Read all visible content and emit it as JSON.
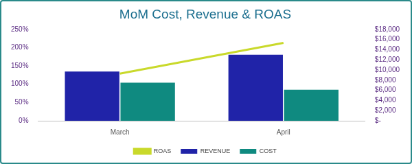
{
  "chart_data": {
    "type": "bar",
    "title": "MoM Cost, Revenue & ROAS",
    "categories": [
      "March",
      "April"
    ],
    "series": [
      {
        "name": "REVENUE",
        "color": "#2023a8",
        "values": [
          9700,
          13000
        ],
        "axis": "y2"
      },
      {
        "name": "COST",
        "color": "#0f8a80",
        "values": [
          7500,
          6100
        ],
        "axis": "y2"
      },
      {
        "name": "ROAS",
        "color": "#c9d92b",
        "values": [
          129,
          213
        ],
        "type": "line",
        "marker": "none"
      }
    ],
    "ylim": [
      0,
      250
    ],
    "yticks": [
      {
        "value": 0,
        "label": "0%"
      },
      {
        "value": 50,
        "label": "50%"
      },
      {
        "value": 100,
        "label": "100%"
      },
      {
        "value": 150,
        "label": "150%"
      },
      {
        "value": 200,
        "label": "200%"
      },
      {
        "value": 250,
        "label": "250%"
      }
    ],
    "y2lim": [
      0,
      18000
    ],
    "y2ticks": [
      {
        "value": 0,
        "label": "$-"
      },
      {
        "value": 2000,
        "label": "$2,000"
      },
      {
        "value": 4000,
        "label": "$4,000"
      },
      {
        "value": 6000,
        "label": "$6,000"
      },
      {
        "value": 8000,
        "label": "$8,000"
      },
      {
        "value": 10000,
        "label": "$10,000"
      },
      {
        "value": 12000,
        "label": "$12,000"
      },
      {
        "value": 14000,
        "label": "$14,000"
      },
      {
        "value": 16000,
        "label": "$16,000"
      },
      {
        "value": 18000,
        "label": "$18,000"
      }
    ],
    "grid": false,
    "legend": "bottom"
  }
}
